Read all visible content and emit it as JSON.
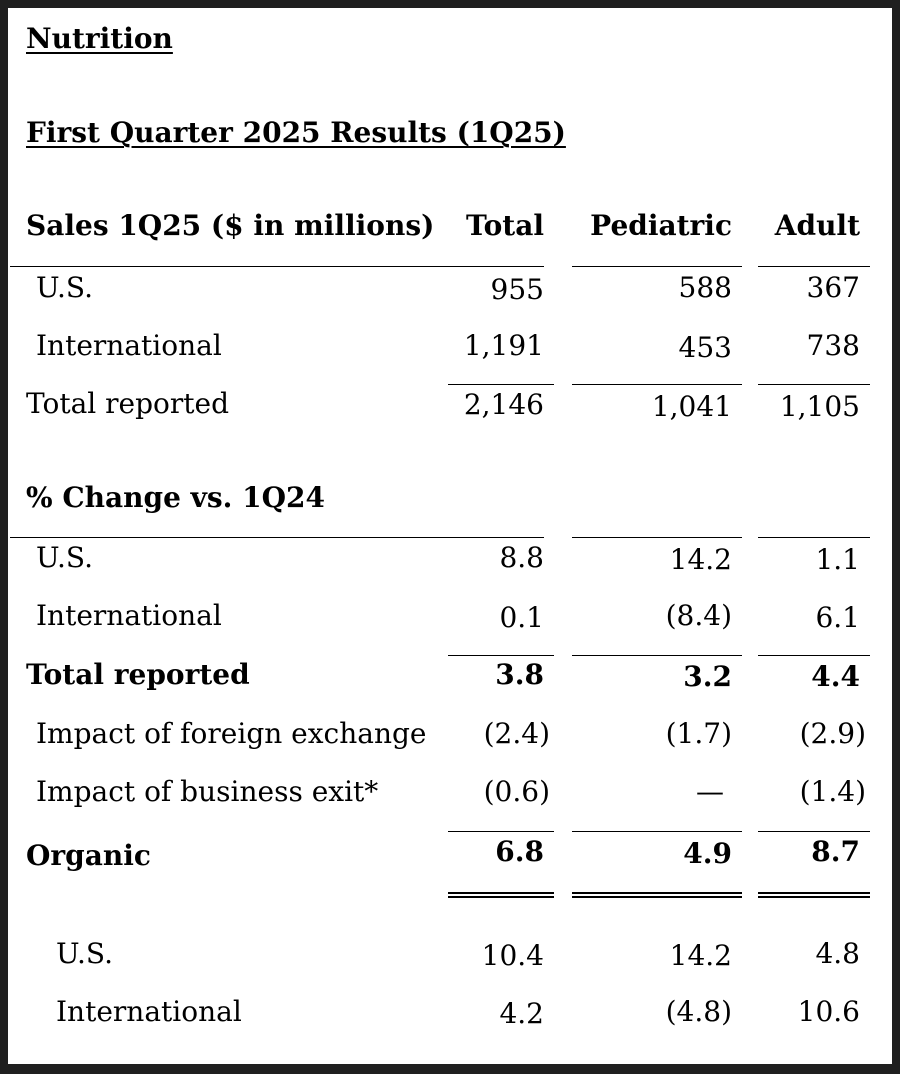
{
  "segment_title": "Nutrition",
  "results_title": "First Quarter 2025 Results (1Q25)",
  "sales_section": {
    "header": "Sales 1Q25 ($ in millions)",
    "col_total": "Total",
    "col_pediatric": "Pediatric",
    "col_adult": "Adult",
    "rows": [
      {
        "label": "U.S.",
        "total": "955",
        "pediatric": "588",
        "adult": "367"
      },
      {
        "label": "International",
        "total": "1,191",
        "pediatric": "453",
        "adult": "738"
      },
      {
        "label": "Total reported",
        "total": "2,146",
        "pediatric": "1,041",
        "adult": "1,105"
      }
    ]
  },
  "change_section": {
    "header": "% Change vs. 1Q24",
    "rows": [
      {
        "label": "U.S.",
        "total": "8.8",
        "pediatric": "14.2",
        "adult": "1.1"
      },
      {
        "label": "International",
        "total": "0.1",
        "pediatric": "(8.4)",
        "adult": "6.1"
      },
      {
        "label": "Total reported",
        "total": "3.8",
        "pediatric": "3.2",
        "adult": "4.4"
      },
      {
        "label": "Impact of foreign exchange",
        "total": "(2.4)",
        "pediatric": "(1.7)",
        "adult": "(2.9)"
      },
      {
        "label": "Impact of business exit*",
        "total": "(0.6)",
        "pediatric": "—",
        "adult": "(1.4)"
      },
      {
        "label": "Organic",
        "total": "6.8",
        "pediatric": "4.9",
        "adult": "8.7"
      }
    ]
  },
  "organic_breakdown": {
    "rows": [
      {
        "label": "U.S.",
        "total": "10.4",
        "pediatric": "14.2",
        "adult": "4.8"
      },
      {
        "label": "International",
        "total": "4.2",
        "pediatric": "(4.8)",
        "adult": "10.6"
      }
    ]
  }
}
